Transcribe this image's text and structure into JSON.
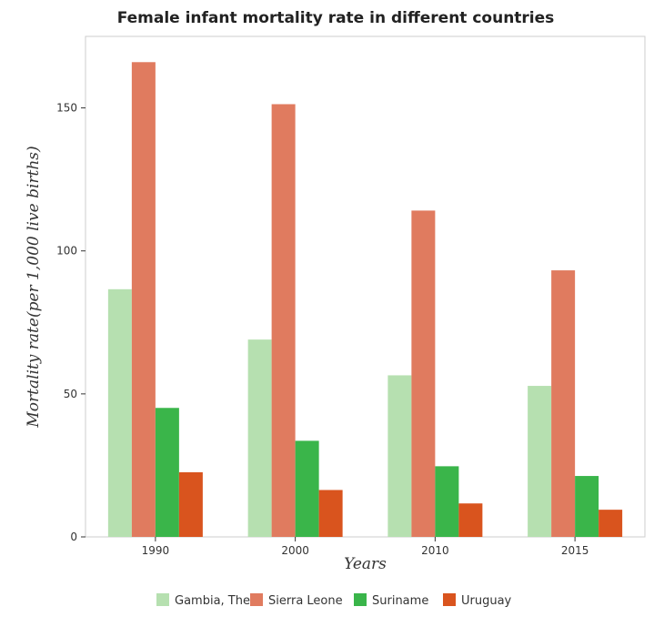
{
  "chart_data": {
    "type": "bar",
    "title": "Female infant mortality rate in different countries",
    "xlabel": "Years",
    "ylabel": "Mortality rate(per 1,000 live births)",
    "categories": [
      "1990",
      "2000",
      "2010",
      "2015"
    ],
    "ylim": [
      0,
      175
    ],
    "yticks": [
      0,
      50,
      100,
      150
    ],
    "grid": false,
    "legend_position": "bottom",
    "series": [
      {
        "name": "Gambia, The",
        "color": "#b6e0b0",
        "values": [
          86.6,
          69.0,
          56.5,
          52.8
        ]
      },
      {
        "name": "Sierra Leone",
        "color": "#e07b5f",
        "values": [
          166.0,
          151.3,
          114.1,
          93.2
        ]
      },
      {
        "name": "Suriname",
        "color": "#3ab54a",
        "values": [
          45.1,
          33.6,
          24.7,
          21.3
        ]
      },
      {
        "name": "Uruguay",
        "color": "#d9541e",
        "values": [
          22.6,
          16.4,
          11.7,
          9.5
        ]
      }
    ]
  }
}
